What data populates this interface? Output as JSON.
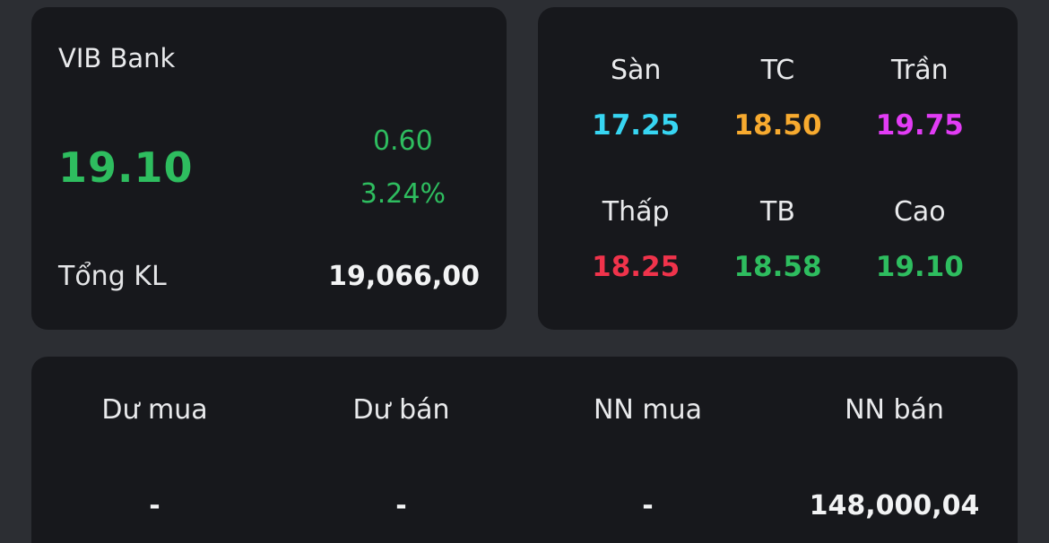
{
  "colors": {
    "up": "#2ebd5f",
    "down": "#f0334b",
    "floor": "#37d5f2",
    "reference": "#f7aa2f",
    "ceiling": "#e23cf5",
    "text": "#e9eaec",
    "card_bg": "#17181c",
    "page_bg": "#2c2e33"
  },
  "quote_card": {
    "symbol": "VIB Bank",
    "price": "19.10",
    "change": "0.60",
    "change_pct": "3.24%",
    "total_volume_label": "Tổng KL",
    "total_volume": "19,066,00"
  },
  "stats_card": {
    "cells": [
      {
        "label": "Sàn",
        "value": "17.25",
        "color": "#37d5f2"
      },
      {
        "label": "TC",
        "value": "18.50",
        "color": "#f7aa2f"
      },
      {
        "label": "Trần",
        "value": "19.75",
        "color": "#e23cf5"
      },
      {
        "label": "Thấp",
        "value": "18.25",
        "color": "#f0334b"
      },
      {
        "label": "TB",
        "value": "18.58",
        "color": "#2ebd5f"
      },
      {
        "label": "Cao",
        "value": "19.10",
        "color": "#2ebd5f"
      }
    ]
  },
  "orders_card": {
    "columns": [
      {
        "label": "Dư mua",
        "value": "-"
      },
      {
        "label": "Dư bán",
        "value": "-"
      },
      {
        "label": "NN mua",
        "value": "-"
      },
      {
        "label": "NN bán",
        "value": "148,000,04"
      }
    ]
  }
}
